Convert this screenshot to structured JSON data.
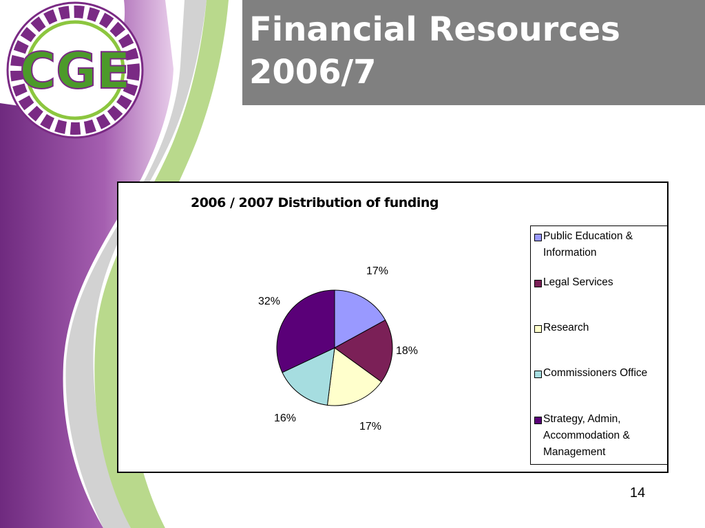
{
  "slide": {
    "title_line1": "Financial Resources",
    "title_line2": "2006/7",
    "page_number": "14",
    "logo_text": "CGE",
    "colors": {
      "title_bar": "#808080",
      "accent_purple": "#7a2a84",
      "accent_green": "#8cc63f"
    }
  },
  "chart_data": {
    "type": "pie",
    "title": "2006 / 2007 Distribution of funding",
    "categories": [
      "Public Education & Information",
      "Legal Services",
      "Research",
      "Commissioners Office",
      "Strategy, Admin, Accommodation & Management"
    ],
    "values": [
      17,
      18,
      17,
      16,
      32
    ],
    "labels": [
      "17%",
      "18%",
      "17%",
      "16%",
      "32%"
    ],
    "colors": [
      "#9999ff",
      "#7b2057",
      "#ffffcc",
      "#a6dde0",
      "#5a0078"
    ],
    "legend": {
      "position": "right",
      "entries": [
        [
          "Public Education &",
          "Information"
        ],
        [
          "Legal Services"
        ],
        [
          "Research"
        ],
        [
          "Commissioners Office"
        ],
        [
          "Strategy, Admin,",
          "Accommodation &",
          "Management"
        ]
      ]
    }
  }
}
